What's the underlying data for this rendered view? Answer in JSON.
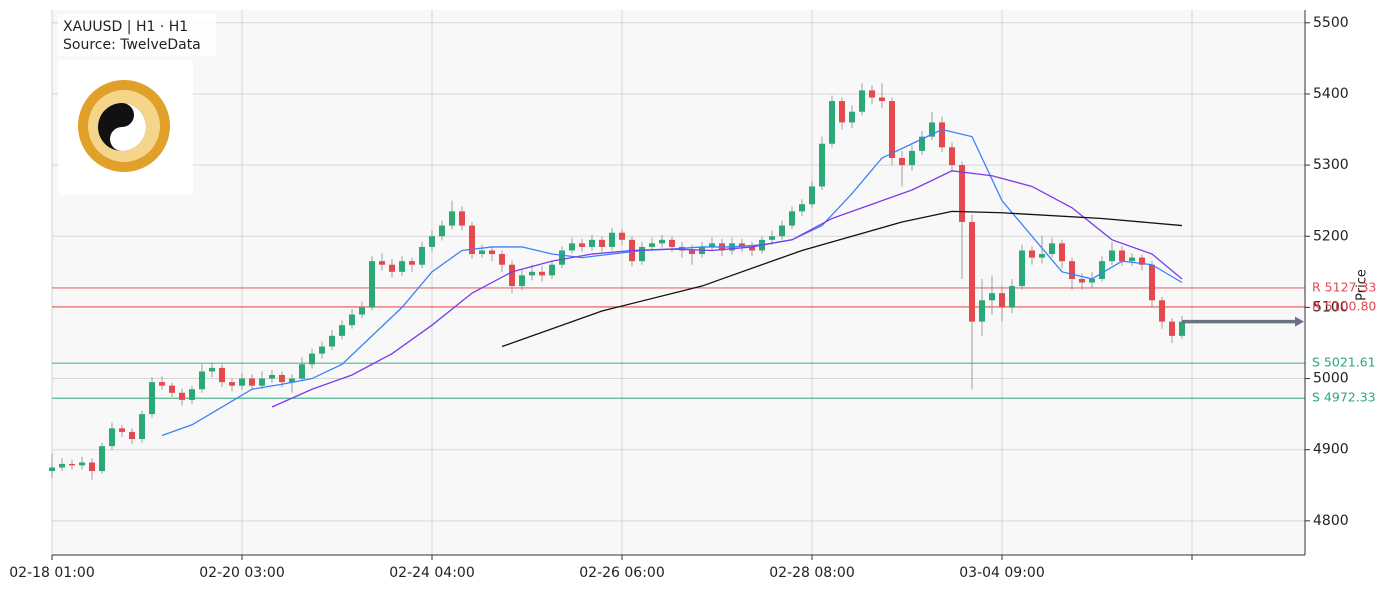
{
  "chart_data": {
    "type": "candlestick",
    "title": "XAUUSD | H1  ·  H1",
    "subtitle": "Source: TwelveData",
    "y_label": "Price",
    "xlim": [
      0,
      125.3
    ],
    "ylim": [
      4752,
      5518
    ],
    "xticks": [
      {
        "value": 0,
        "label": "02-18 01:00"
      },
      {
        "value": 19,
        "label": "02-20 03:00"
      },
      {
        "value": 38,
        "label": "02-24 04:00"
      },
      {
        "value": 57,
        "label": "02-26 06:00"
      },
      {
        "value": 76,
        "label": "02-28 08:00"
      },
      {
        "value": 95,
        "label": "03-04 09:00"
      },
      {
        "value": 114
      }
    ],
    "yticks": [
      4800,
      4900,
      5000,
      5100,
      5200,
      5300,
      5400,
      5500
    ],
    "grid": true,
    "up_color": "#2aa876",
    "down_color": "#e5484d",
    "open": [
      4870,
      4875,
      4880,
      4878,
      4882,
      4870,
      4905,
      4930,
      4925,
      4915,
      4950,
      4995,
      4990,
      4980,
      4970,
      4985,
      5010,
      5015,
      4995,
      4990,
      5000,
      4990,
      5000,
      5005,
      4995,
      5000,
      5020,
      5035,
      5045,
      5060,
      5075,
      5090,
      5100,
      5165,
      5160,
      5150,
      5165,
      5160,
      5185,
      5200,
      5215,
      5235,
      5215,
      5175,
      5180,
      5175,
      5160,
      5130,
      5145,
      5150,
      5145,
      5160,
      5180,
      5190,
      5185,
      5195,
      5185,
      5205,
      5195,
      5165,
      5185,
      5190,
      5195,
      5185,
      5180,
      5175,
      5185,
      5190,
      5180,
      5190,
      5185,
      5180,
      5195,
      5200,
      5215,
      5235,
      5245,
      5270,
      5330,
      5390,
      5360,
      5375,
      5405,
      5395,
      5390,
      5310,
      5300,
      5320,
      5340,
      5360,
      5325,
      5300,
      5220,
      5080,
      5110,
      5120,
      5100,
      5130,
      5180,
      5170,
      5175,
      5190,
      5165,
      5140,
      5135,
      5140,
      5165,
      5180,
      5165,
      5170,
      5160,
      5110,
      5080,
      5060
    ],
    "high": [
      4895,
      4888,
      4886,
      4890,
      4888,
      4910,
      4938,
      4935,
      4930,
      4955,
      5002,
      5003,
      4994,
      4986,
      4990,
      5020,
      5022,
      5020,
      5000,
      5008,
      5006,
      5010,
      5012,
      5010,
      5006,
      5030,
      5042,
      5052,
      5068,
      5082,
      5098,
      5108,
      5172,
      5176,
      5168,
      5172,
      5170,
      5192,
      5208,
      5222,
      5250,
      5242,
      5220,
      5188,
      5186,
      5180,
      5166,
      5152,
      5160,
      5158,
      5166,
      5186,
      5198,
      5196,
      5202,
      5200,
      5212,
      5210,
      5200,
      5192,
      5198,
      5202,
      5200,
      5192,
      5188,
      5192,
      5198,
      5196,
      5198,
      5196,
      5192,
      5200,
      5208,
      5222,
      5242,
      5252,
      5278,
      5340,
      5398,
      5395,
      5384,
      5415,
      5412,
      5415,
      5395,
      5320,
      5328,
      5348,
      5375,
      5368,
      5332,
      5305,
      5230,
      5140,
      5145,
      5130,
      5140,
      5188,
      5186,
      5200,
      5198,
      5195,
      5170,
      5148,
      5150,
      5172,
      5192,
      5186,
      5176,
      5174,
      5165,
      5115,
      5085,
      5088
    ],
    "low": [
      4860,
      4870,
      4872,
      4872,
      4858,
      4866,
      4900,
      4918,
      4908,
      4910,
      4945,
      4984,
      4974,
      4962,
      4964,
      4980,
      5002,
      4988,
      4982,
      4984,
      4984,
      4985,
      4994,
      4988,
      4980,
      4996,
      5014,
      5028,
      5040,
      5055,
      5070,
      5085,
      5096,
      5152,
      5142,
      5144,
      5150,
      5155,
      5178,
      5194,
      5210,
      5208,
      5168,
      5170,
      5165,
      5150,
      5120,
      5124,
      5138,
      5136,
      5140,
      5155,
      5176,
      5178,
      5180,
      5178,
      5180,
      5188,
      5158,
      5160,
      5180,
      5184,
      5178,
      5170,
      5160,
      5170,
      5180,
      5172,
      5174,
      5178,
      5172,
      5176,
      5188,
      5195,
      5210,
      5228,
      5240,
      5265,
      5325,
      5350,
      5352,
      5370,
      5386,
      5380,
      5300,
      5270,
      5292,
      5314,
      5335,
      5318,
      5290,
      5140,
      4985,
      5060,
      5090,
      5080,
      5092,
      5125,
      5160,
      5162,
      5170,
      5155,
      5125,
      5125,
      5128,
      5136,
      5160,
      5158,
      5158,
      5152,
      5100,
      5070,
      5050,
      5056
    ],
    "close": [
      4875,
      4880,
      4878,
      4882,
      4870,
      4905,
      4930,
      4925,
      4915,
      4950,
      4995,
      4990,
      4980,
      4970,
      4985,
      5010,
      5015,
      4995,
      4990,
      5000,
      4990,
      5000,
      5005,
      4995,
      5000,
      5020,
      5035,
      5045,
      5060,
      5075,
      5090,
      5100,
      5165,
      5160,
      5150,
      5165,
      5160,
      5185,
      5200,
      5215,
      5235,
      5215,
      5175,
      5180,
      5175,
      5160,
      5130,
      5145,
      5150,
      5145,
      5160,
      5180,
      5190,
      5185,
      5195,
      5185,
      5205,
      5195,
      5165,
      5185,
      5190,
      5195,
      5185,
      5180,
      5175,
      5185,
      5190,
      5180,
      5190,
      5185,
      5180,
      5195,
      5200,
      5215,
      5235,
      5245,
      5270,
      5330,
      5390,
      5360,
      5375,
      5405,
      5395,
      5390,
      5310,
      5300,
      5320,
      5340,
      5360,
      5325,
      5300,
      5220,
      5080,
      5110,
      5120,
      5100,
      5130,
      5180,
      5170,
      5175,
      5190,
      5165,
      5140,
      5135,
      5140,
      5165,
      5180,
      5165,
      5170,
      5160,
      5110,
      5080,
      5060,
      5080
    ],
    "series": [
      {
        "color": "#3b82f6",
        "x": [
          11,
          14,
          17,
          20,
          23,
          26,
          29,
          32,
          35,
          38,
          41,
          44,
          47,
          50,
          53,
          56,
          59,
          62,
          65,
          68,
          71,
          74,
          77,
          80,
          83,
          86,
          89,
          92,
          95,
          98,
          101,
          104,
          107,
          110,
          113
        ],
        "values": [
          4920,
          4935,
          4960,
          4985,
          4992,
          5000,
          5020,
          5060,
          5100,
          5150,
          5180,
          5185,
          5185,
          5175,
          5170,
          5175,
          5180,
          5182,
          5185,
          5185,
          5188,
          5195,
          5215,
          5260,
          5310,
          5330,
          5350,
          5340,
          5250,
          5200,
          5150,
          5140,
          5165,
          5160,
          5135
        ]
      },
      {
        "color": "#7c3aed",
        "x": [
          22,
          26,
          30,
          34,
          38,
          42,
          46,
          50,
          54,
          58,
          62,
          66,
          70,
          74,
          78,
          82,
          86,
          90,
          94,
          98,
          102,
          106,
          110,
          113
        ],
        "values": [
          4960,
          4985,
          5005,
          5035,
          5075,
          5120,
          5150,
          5165,
          5175,
          5180,
          5182,
          5180,
          5185,
          5195,
          5225,
          5245,
          5265,
          5292,
          5285,
          5270,
          5240,
          5195,
          5175,
          5140
        ]
      },
      {
        "color": "#111111",
        "x": [
          45,
          55,
          65,
          75,
          85,
          90,
          95,
          105,
          113
        ],
        "values": [
          5045,
          5095,
          5130,
          5180,
          5220,
          5235,
          5233,
          5225,
          5215
        ]
      }
    ],
    "levels": [
      {
        "value": 5127.33,
        "label": "R 5127.33",
        "color": "#e5484d"
      },
      {
        "value": 5100.8,
        "label": "R 5100.80",
        "color": "#e5484d"
      },
      {
        "value": 5021.61,
        "label": "S 5021.61",
        "color": "#2aa876"
      },
      {
        "value": 4972.33,
        "label": "S 4972.33",
        "color": "#2aa876"
      }
    ],
    "last_price": 5080
  }
}
